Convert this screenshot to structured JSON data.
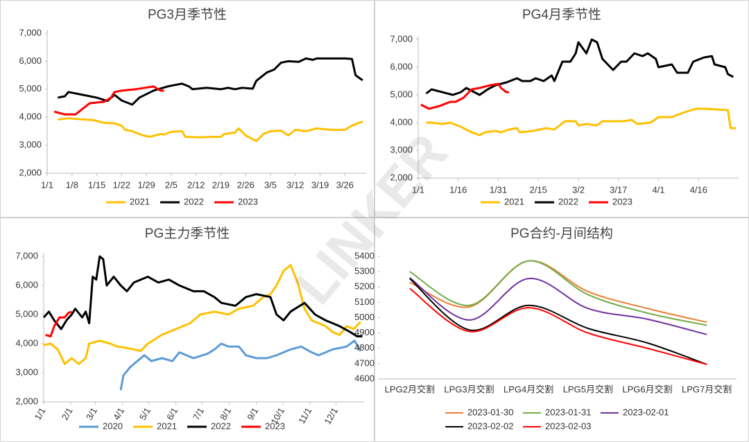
{
  "watermark": "LINKER",
  "chart_data": [
    {
      "type": "line",
      "title": "PG3月季节性",
      "xlim": [
        0,
        90
      ],
      "xticks": [
        {
          "value": 0,
          "label": "1/1"
        },
        {
          "value": 7,
          "label": "1/8"
        },
        {
          "value": 14,
          "label": "1/15"
        },
        {
          "value": 21,
          "label": "1/22"
        },
        {
          "value": 28,
          "label": "1/29"
        },
        {
          "value": 35,
          "label": "2/5"
        },
        {
          "value": 42,
          "label": "2/12"
        },
        {
          "value": 49,
          "label": "2/19"
        },
        {
          "value": 56,
          "label": "2/26"
        },
        {
          "value": 63,
          "label": "3/5"
        },
        {
          "value": 70,
          "label": "3/12"
        },
        {
          "value": 77,
          "label": "3/19"
        },
        {
          "value": 84,
          "label": "3/26"
        }
      ],
      "ylim": [
        2000,
        7000
      ],
      "yticks": [
        {
          "value": 2000,
          "label": "2,000"
        },
        {
          "value": 3000,
          "label": "3,000"
        },
        {
          "value": 4000,
          "label": "4,000"
        },
        {
          "value": 5000,
          "label": "5,000"
        },
        {
          "value": 6000,
          "label": "6,000"
        },
        {
          "value": 7000,
          "label": "7,000"
        }
      ],
      "grid": false,
      "legend": "bottom",
      "series": [
        {
          "name": "2021",
          "color": "#ffc000",
          "x": [
            3,
            6,
            10,
            13,
            16,
            19,
            21,
            22,
            24,
            27,
            29,
            32,
            33,
            35,
            38,
            39,
            43,
            47,
            49,
            50,
            53,
            54,
            56,
            59,
            61,
            63,
            66,
            68,
            70,
            73,
            76,
            80,
            84,
            86,
            89
          ],
          "values": [
            3920,
            3960,
            3920,
            3900,
            3800,
            3780,
            3700,
            3550,
            3500,
            3350,
            3300,
            3400,
            3380,
            3480,
            3500,
            3300,
            3280,
            3300,
            3300,
            3400,
            3450,
            3600,
            3350,
            3150,
            3400,
            3500,
            3520,
            3350,
            3550,
            3500,
            3600,
            3550,
            3550,
            3700,
            3850
          ]
        },
        {
          "name": "2022",
          "color": "#000000",
          "x": [
            3,
            5,
            6,
            10,
            14,
            17,
            19,
            21,
            24,
            26,
            30,
            34,
            38,
            40,
            41,
            45,
            49,
            51,
            53,
            55,
            58,
            59,
            62,
            64,
            66,
            68,
            71,
            73,
            75,
            76,
            84,
            86,
            87,
            89
          ],
          "values": [
            4700,
            4750,
            4900,
            4800,
            4700,
            4580,
            4800,
            4600,
            4450,
            4700,
            4950,
            5100,
            5200,
            5100,
            5000,
            5050,
            5000,
            5050,
            5000,
            5050,
            5020,
            5300,
            5600,
            5700,
            5950,
            6000,
            5980,
            6100,
            6050,
            6100,
            6100,
            6080,
            5500,
            5320
          ]
        },
        {
          "name": "2023",
          "color": "#ff0000",
          "x": [
            2,
            5,
            8,
            10,
            12,
            16,
            18,
            19,
            21,
            25,
            30,
            32,
            33
          ],
          "values": [
            4200,
            4100,
            4100,
            4300,
            4500,
            4550,
            4700,
            4900,
            4950,
            5000,
            5100,
            4950,
            4950
          ]
        }
      ]
    },
    {
      "type": "line",
      "title": "PG4月季节性",
      "xlim": [
        0,
        120
      ],
      "xticks": [
        {
          "value": 0,
          "label": "1/1"
        },
        {
          "value": 15,
          "label": "1/16"
        },
        {
          "value": 30,
          "label": "1/31"
        },
        {
          "value": 45,
          "label": "2/15"
        },
        {
          "value": 60,
          "label": "3/2"
        },
        {
          "value": 75,
          "label": "3/17"
        },
        {
          "value": 90,
          "label": "4/1"
        },
        {
          "value": 105,
          "label": "4/16"
        }
      ],
      "ylim": [
        2000,
        7000
      ],
      "yticks": [
        {
          "value": 2000,
          "label": "2,000"
        },
        {
          "value": 3000,
          "label": "3,000"
        },
        {
          "value": 4000,
          "label": "4,000"
        },
        {
          "value": 5000,
          "label": "5,000"
        },
        {
          "value": 6000,
          "label": "6,000"
        },
        {
          "value": 7000,
          "label": "7,000"
        }
      ],
      "grid": false,
      "legend": "bottom",
      "series": [
        {
          "name": "2021",
          "color": "#ffc000",
          "x": [
            3,
            5,
            9,
            12,
            16,
            20,
            23,
            25,
            29,
            31,
            34,
            37,
            38,
            43,
            48,
            51,
            55,
            59,
            60,
            63,
            67,
            69,
            77,
            80,
            82,
            87,
            90,
            95,
            99,
            104,
            107,
            116,
            117,
            119
          ],
          "values": [
            4000,
            4000,
            3950,
            4000,
            3850,
            3650,
            3550,
            3650,
            3700,
            3650,
            3750,
            3800,
            3650,
            3700,
            3800,
            3750,
            4050,
            4050,
            3900,
            3950,
            3900,
            4050,
            4050,
            4100,
            3950,
            4000,
            4200,
            4200,
            4350,
            4500,
            4500,
            4450,
            3800,
            3800
          ]
        },
        {
          "name": "2022",
          "color": "#000000",
          "x": [
            3,
            5,
            9,
            13,
            16,
            18,
            21,
            23,
            26,
            29,
            33,
            37,
            39,
            42,
            44,
            47,
            50,
            51,
            54,
            57,
            59,
            60,
            63,
            65,
            67,
            69,
            72,
            73,
            76,
            78,
            81,
            84,
            86,
            89,
            90,
            95,
            97,
            101,
            103,
            107,
            110,
            111,
            115,
            116,
            118
          ],
          "values": [
            5050,
            5200,
            5100,
            5000,
            5100,
            5250,
            5100,
            5000,
            5200,
            5350,
            5450,
            5600,
            5500,
            5500,
            5600,
            5500,
            5700,
            5500,
            6200,
            6200,
            6500,
            6900,
            6500,
            7000,
            6900,
            6300,
            6000,
            5900,
            6200,
            6200,
            6500,
            6400,
            6500,
            6300,
            6000,
            6100,
            5800,
            5800,
            6200,
            6350,
            6400,
            6100,
            6000,
            5750,
            5650
          ]
        },
        {
          "name": "2023",
          "color": "#ff0000",
          "x": [
            1,
            4,
            8,
            12,
            14,
            17,
            20,
            23,
            27,
            30,
            31,
            33,
            34
          ],
          "values": [
            4650,
            4500,
            4600,
            4750,
            4750,
            4900,
            5200,
            5250,
            5350,
            5400,
            5250,
            5100,
            5100
          ]
        }
      ]
    },
    {
      "type": "line",
      "title": "PG主力季节性",
      "xlim": [
        0,
        366
      ],
      "xticks": [
        {
          "value": 0,
          "label": "1/1"
        },
        {
          "value": 31,
          "label": "2/1"
        },
        {
          "value": 59,
          "label": "3/1"
        },
        {
          "value": 90,
          "label": "4/1"
        },
        {
          "value": 120,
          "label": "5/1"
        },
        {
          "value": 151,
          "label": "6/1"
        },
        {
          "value": 181,
          "label": "7/1"
        },
        {
          "value": 212,
          "label": "8/1"
        },
        {
          "value": 243,
          "label": "9/1"
        },
        {
          "value": 273,
          "label": "10/1"
        },
        {
          "value": 304,
          "label": "11/1"
        },
        {
          "value": 334,
          "label": "12/1"
        }
      ],
      "ylim": [
        2000,
        7000
      ],
      "yticks": [
        {
          "value": 2000,
          "label": "2,000"
        },
        {
          "value": 3000,
          "label": "3,000"
        },
        {
          "value": 4000,
          "label": "4,000"
        },
        {
          "value": 5000,
          "label": "5,000"
        },
        {
          "value": 6000,
          "label": "6,000"
        },
        {
          "value": 7000,
          "label": "7,000"
        }
      ],
      "grid": false,
      "legend": "bottom",
      "series": [
        {
          "name": "2020",
          "color": "#5b9bd5",
          "x": [
            88,
            91,
            99,
            107,
            115,
            123,
            135,
            147,
            155,
            171,
            187,
            195,
            203,
            211,
            223,
            231,
            243,
            255,
            266,
            282,
            294,
            306,
            314,
            330,
            346,
            355,
            362
          ],
          "values": [
            2400,
            2900,
            3200,
            3400,
            3600,
            3400,
            3500,
            3400,
            3700,
            3500,
            3650,
            3800,
            4000,
            3900,
            3900,
            3600,
            3500,
            3500,
            3600,
            3800,
            3900,
            3700,
            3600,
            3800,
            3900,
            4100,
            3750
          ]
        },
        {
          "name": "2021",
          "color": "#ffc000",
          "x": [
            0,
            8,
            16,
            24,
            32,
            40,
            48,
            52,
            64,
            76,
            84,
            95,
            111,
            119,
            135,
            151,
            167,
            179,
            195,
            211,
            223,
            239,
            251,
            259,
            266,
            274,
            282,
            290,
            298,
            306,
            322,
            330,
            338,
            346,
            354,
            362
          ],
          "values": [
            3950,
            4000,
            3800,
            3300,
            3500,
            3300,
            3500,
            4000,
            4100,
            4000,
            3900,
            3850,
            3750,
            4000,
            4300,
            4500,
            4700,
            5000,
            5100,
            5000,
            5200,
            5300,
            5600,
            5700,
            6000,
            6500,
            6700,
            6100,
            5200,
            4800,
            4600,
            4400,
            4300,
            4600,
            4500,
            4750
          ]
        },
        {
          "name": "2022",
          "color": "#000000",
          "x": [
            0,
            6,
            12,
            20,
            26,
            32,
            36,
            44,
            48,
            52,
            56,
            60,
            64,
            68,
            72,
            80,
            88,
            95,
            103,
            111,
            119,
            131,
            143,
            155,
            171,
            183,
            195,
            203,
            219,
            231,
            243,
            259,
            266,
            274,
            282,
            298,
            310,
            322,
            338,
            350,
            358,
            364
          ],
          "values": [
            4900,
            5100,
            4800,
            4500,
            4800,
            5000,
            5200,
            4900,
            5100,
            4700,
            6300,
            6200,
            7000,
            6900,
            6000,
            6300,
            6000,
            5800,
            6100,
            6200,
            6300,
            6100,
            6200,
            6000,
            5800,
            5800,
            5600,
            5400,
            5300,
            5600,
            5700,
            5600,
            5000,
            4800,
            5100,
            5400,
            5000,
            4800,
            4600,
            4400,
            4250,
            4250
          ]
        },
        {
          "name": "2023",
          "color": "#ff0000",
          "x": [
            2,
            8,
            12,
            18,
            24,
            28,
            32
          ],
          "values": [
            4300,
            4250,
            4600,
            4900,
            4900,
            5050,
            5100
          ]
        }
      ]
    },
    {
      "type": "line",
      "title": "PG合约-月间结构",
      "smooth": true,
      "categories": [
        "LPG2月交割",
        "LPG3月交割",
        "LPG4月交割",
        "LPG5月交割",
        "LPG6月交割",
        "LPG7月交割"
      ],
      "ylim": [
        4600,
        5400
      ],
      "yticks": [
        4600,
        4700,
        4800,
        4900,
        5000,
        5100,
        5200,
        5300,
        5400
      ],
      "grid": false,
      "legend": "bottom",
      "series": [
        {
          "name": "2023-01-30",
          "color": "#ed7d31",
          "values": [
            5230,
            5070,
            5370,
            5170,
            5060,
            4970
          ]
        },
        {
          "name": "2023-01-31",
          "color": "#70ad47",
          "values": [
            5300,
            5080,
            5370,
            5150,
            5030,
            4950
          ]
        },
        {
          "name": "2023-02-01",
          "color": "#7030a0",
          "values": [
            5260,
            4985,
            5255,
            5060,
            4990,
            4890
          ]
        },
        {
          "name": "2023-02-02",
          "color": "#000000",
          "values": [
            5255,
            4920,
            5080,
            4930,
            4835,
            4695
          ]
        },
        {
          "name": "2023-02-03",
          "color": "#ff0000",
          "values": [
            5190,
            4910,
            5065,
            4900,
            4800,
            4695
          ]
        }
      ]
    }
  ]
}
